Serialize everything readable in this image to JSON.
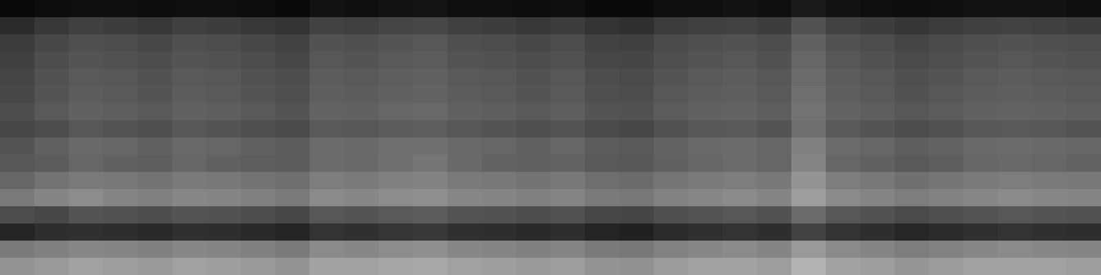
{
  "chart_data": {
    "type": "heatmap",
    "tick_labels": false,
    "zlim": [
      0,
      100
    ],
    "cells": [
      [
        3,
        5,
        6,
        6,
        5,
        6,
        6,
        5,
        4,
        7,
        6,
        7,
        8,
        6,
        6,
        5,
        6,
        4,
        4,
        6,
        6,
        7,
        6,
        10,
        7,
        6,
        5,
        6,
        7,
        7,
        7,
        6
      ],
      [
        17,
        22,
        25,
        24,
        22,
        25,
        24,
        22,
        20,
        26,
        25,
        27,
        28,
        25,
        24,
        22,
        24,
        20,
        19,
        23,
        25,
        26,
        24,
        32,
        26,
        24,
        21,
        23,
        25,
        26,
        25,
        24
      ],
      [
        23,
        28,
        31,
        30,
        28,
        31,
        30,
        28,
        26,
        32,
        31,
        33,
        34,
        31,
        30,
        28,
        30,
        26,
        25,
        29,
        31,
        32,
        30,
        38,
        32,
        30,
        27,
        29,
        31,
        32,
        31,
        30
      ],
      [
        25,
        30,
        33,
        32,
        30,
        33,
        32,
        30,
        28,
        34,
        33,
        35,
        36,
        33,
        32,
        30,
        32,
        28,
        27,
        31,
        33,
        34,
        32,
        40,
        34,
        32,
        29,
        31,
        33,
        34,
        33,
        32
      ],
      [
        27,
        32,
        35,
        34,
        32,
        35,
        34,
        32,
        30,
        36,
        35,
        37,
        38,
        35,
        34,
        32,
        34,
        30,
        29,
        33,
        35,
        36,
        34,
        42,
        36,
        34,
        31,
        33,
        35,
        36,
        35,
        34
      ],
      [
        28,
        33,
        36,
        35,
        33,
        36,
        35,
        33,
        31,
        37,
        36,
        38,
        39,
        36,
        35,
        33,
        35,
        31,
        30,
        34,
        36,
        37,
        35,
        43,
        37,
        35,
        32,
        34,
        36,
        37,
        36,
        35
      ],
      [
        30,
        35,
        38,
        37,
        35,
        38,
        37,
        35,
        33,
        39,
        38,
        40,
        41,
        38,
        37,
        35,
        37,
        33,
        32,
        36,
        38,
        39,
        37,
        45,
        39,
        37,
        34,
        36,
        38,
        39,
        38,
        37
      ],
      [
        28,
        30,
        34,
        33,
        31,
        34,
        33,
        31,
        29,
        35,
        34,
        36,
        37,
        34,
        33,
        31,
        33,
        29,
        28,
        32,
        34,
        35,
        33,
        43,
        35,
        33,
        30,
        32,
        34,
        35,
        34,
        33
      ],
      [
        33,
        38,
        41,
        40,
        38,
        41,
        40,
        38,
        36,
        42,
        41,
        43,
        44,
        41,
        40,
        38,
        40,
        36,
        35,
        39,
        41,
        42,
        40,
        50,
        42,
        40,
        37,
        39,
        41,
        42,
        41,
        40
      ],
      [
        34,
        36,
        40,
        38,
        37,
        40,
        38,
        37,
        36,
        42,
        41,
        44,
        46,
        41,
        39,
        38,
        39,
        35,
        34,
        38,
        40,
        42,
        40,
        52,
        40,
        38,
        35,
        37,
        40,
        41,
        40,
        39
      ],
      [
        40,
        45,
        48,
        47,
        45,
        48,
        47,
        45,
        43,
        49,
        48,
        50,
        51,
        48,
        47,
        45,
        47,
        43,
        42,
        46,
        48,
        49,
        47,
        58,
        49,
        47,
        44,
        46,
        48,
        49,
        48,
        47
      ],
      [
        48,
        52,
        55,
        52,
        50,
        53,
        52,
        50,
        48,
        54,
        53,
        55,
        56,
        53,
        52,
        50,
        52,
        48,
        47,
        51,
        53,
        54,
        52,
        62,
        54,
        52,
        49,
        51,
        53,
        54,
        53,
        52
      ],
      [
        30,
        28,
        33,
        32,
        30,
        33,
        32,
        30,
        28,
        34,
        33,
        35,
        36,
        33,
        32,
        30,
        32,
        28,
        27,
        31,
        33,
        34,
        32,
        42,
        34,
        32,
        29,
        31,
        33,
        34,
        33,
        32
      ],
      [
        14,
        18,
        19,
        18,
        16,
        19,
        18,
        16,
        14,
        20,
        19,
        21,
        22,
        19,
        18,
        16,
        18,
        14,
        13,
        17,
        19,
        20,
        18,
        26,
        20,
        18,
        15,
        17,
        19,
        20,
        19,
        18
      ],
      [
        48,
        50,
        53,
        52,
        50,
        53,
        52,
        50,
        48,
        54,
        53,
        55,
        56,
        53,
        52,
        50,
        52,
        48,
        47,
        51,
        53,
        54,
        52,
        60,
        54,
        52,
        49,
        51,
        53,
        54,
        53,
        52
      ],
      [
        58,
        60,
        63,
        62,
        60,
        63,
        62,
        60,
        58,
        64,
        63,
        65,
        66,
        63,
        62,
        60,
        62,
        58,
        57,
        61,
        63,
        64,
        62,
        70,
        64,
        62,
        59,
        61,
        63,
        64,
        63,
        62
      ]
    ]
  }
}
